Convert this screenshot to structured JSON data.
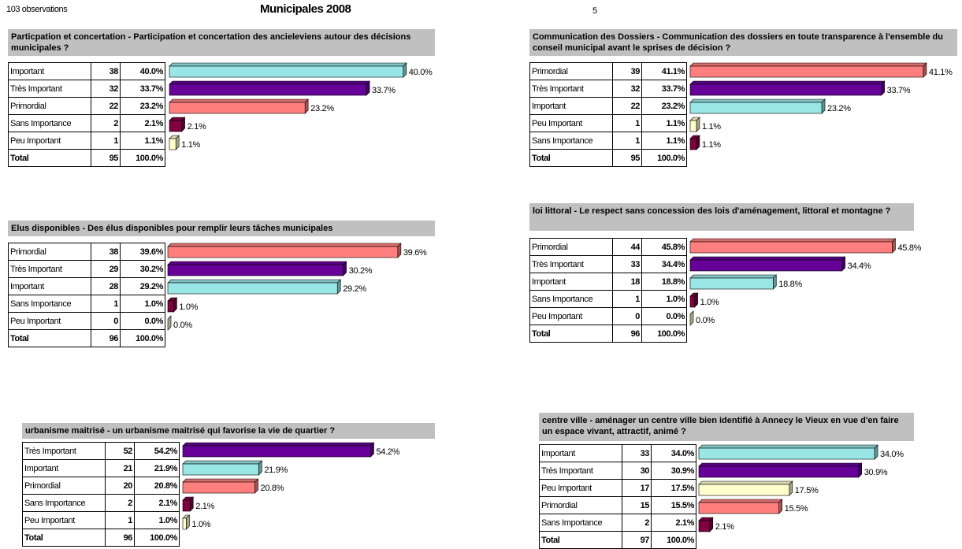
{
  "header": {
    "observations": "103 observations",
    "title": "Municipales 2008",
    "page": "5"
  },
  "colors": {
    "Important": "#99e6e6",
    "Très Important": "#660099",
    "Primordial": "#ff7f7f",
    "Sans Importance": "#800040",
    "Peu Important": "#ffffcc"
  },
  "panels": [
    {
      "title": "Particpation et concertation - Participation et concertation des ancieleviens autour des décisions municipales ?",
      "rows": [
        {
          "label": "Important",
          "count": 38,
          "percent": 40.0,
          "percent_label": "40.0%"
        },
        {
          "label": "Très Important",
          "count": 32,
          "percent": 33.7,
          "percent_label": "33.7%"
        },
        {
          "label": "Primordial",
          "count": 22,
          "percent": 23.2,
          "percent_label": "23.2%"
        },
        {
          "label": "Sans Importance",
          "count": 2,
          "percent": 2.1,
          "percent_label": "2.1%"
        },
        {
          "label": "Peu Important",
          "count": 1,
          "percent": 1.1,
          "percent_label": "1.1%"
        }
      ],
      "total": {
        "label": "Total",
        "count": 95,
        "percent_label": "100.0%"
      }
    },
    {
      "title": "Communication des Dossiers - Communication des dossiers en toute transparence à l'ensemble du conseil municipal avant le sprises de décision ?",
      "rows": [
        {
          "label": "Primordial",
          "count": 39,
          "percent": 41.1,
          "percent_label": "41.1%"
        },
        {
          "label": "Très Important",
          "count": 32,
          "percent": 33.7,
          "percent_label": "33.7%"
        },
        {
          "label": "Important",
          "count": 22,
          "percent": 23.2,
          "percent_label": "23.2%"
        },
        {
          "label": "Peu Important",
          "count": 1,
          "percent": 1.1,
          "percent_label": "1.1%"
        },
        {
          "label": "Sans Importance",
          "count": 1,
          "percent": 1.1,
          "percent_label": "1.1%"
        }
      ],
      "total": {
        "label": "Total",
        "count": 95,
        "percent_label": "100.0%"
      }
    },
    {
      "title": "Elus disponibles - Des élus disponibles pour remplir leurs tâches municipales",
      "rows": [
        {
          "label": "Primordial",
          "count": 38,
          "percent": 39.6,
          "percent_label": "39.6%"
        },
        {
          "label": "Très Important",
          "count": 29,
          "percent": 30.2,
          "percent_label": "30.2%"
        },
        {
          "label": "Important",
          "count": 28,
          "percent": 29.2,
          "percent_label": "29.2%"
        },
        {
          "label": "Sans Importance",
          "count": 1,
          "percent": 1.0,
          "percent_label": "1.0%"
        },
        {
          "label": "Peu Important",
          "count": 0,
          "percent": 0.0,
          "percent_label": "0.0%"
        }
      ],
      "total": {
        "label": "Total",
        "count": 96,
        "percent_label": "100.0%"
      }
    },
    {
      "title": "loi littoral - Le respect sans concession des lois d'aménagement, littoral et montagne ?",
      "rows": [
        {
          "label": "Primordial",
          "count": 44,
          "percent": 45.8,
          "percent_label": "45.8%"
        },
        {
          "label": "Très Important",
          "count": 33,
          "percent": 34.4,
          "percent_label": "34.4%"
        },
        {
          "label": "Important",
          "count": 18,
          "percent": 18.8,
          "percent_label": "18.8%"
        },
        {
          "label": "Sans Importance",
          "count": 1,
          "percent": 1.0,
          "percent_label": "1.0%"
        },
        {
          "label": "Peu Important",
          "count": 0,
          "percent": 0.0,
          "percent_label": "0.0%"
        }
      ],
      "total": {
        "label": "Total",
        "count": 96,
        "percent_label": "100.0%"
      }
    },
    {
      "title": "urbanisme maitrisé - un urbanisme maitrisé qui favorise la vie de quartier ?",
      "rows": [
        {
          "label": "Très Important",
          "count": 52,
          "percent": 54.2,
          "percent_label": "54.2%"
        },
        {
          "label": "Important",
          "count": 21,
          "percent": 21.9,
          "percent_label": "21.9%"
        },
        {
          "label": "Primordial",
          "count": 20,
          "percent": 20.8,
          "percent_label": "20.8%"
        },
        {
          "label": "Sans Importance",
          "count": 2,
          "percent": 2.1,
          "percent_label": "2.1%"
        },
        {
          "label": "Peu Important",
          "count": 1,
          "percent": 1.0,
          "percent_label": "1.0%"
        }
      ],
      "total": {
        "label": "Total",
        "count": 96,
        "percent_label": "100.0%"
      }
    },
    {
      "title": "centre ville - aménager un centre ville bien identifié à Annecy le Vieux en vue d'en faire un espace vivant, attractif, animé ?",
      "rows": [
        {
          "label": "Important",
          "count": 33,
          "percent": 34.0,
          "percent_label": "34.0%"
        },
        {
          "label": "Très Important",
          "count": 30,
          "percent": 30.9,
          "percent_label": "30.9%"
        },
        {
          "label": "Peu Important",
          "count": 17,
          "percent": 17.5,
          "percent_label": "17.5%"
        },
        {
          "label": "Primordial",
          "count": 15,
          "percent": 15.5,
          "percent_label": "15.5%"
        },
        {
          "label": "Sans Importance",
          "count": 2,
          "percent": 2.1,
          "percent_label": "2.1%"
        }
      ],
      "total": {
        "label": "Total",
        "count": 97,
        "percent_label": "100.0%"
      }
    }
  ]
}
